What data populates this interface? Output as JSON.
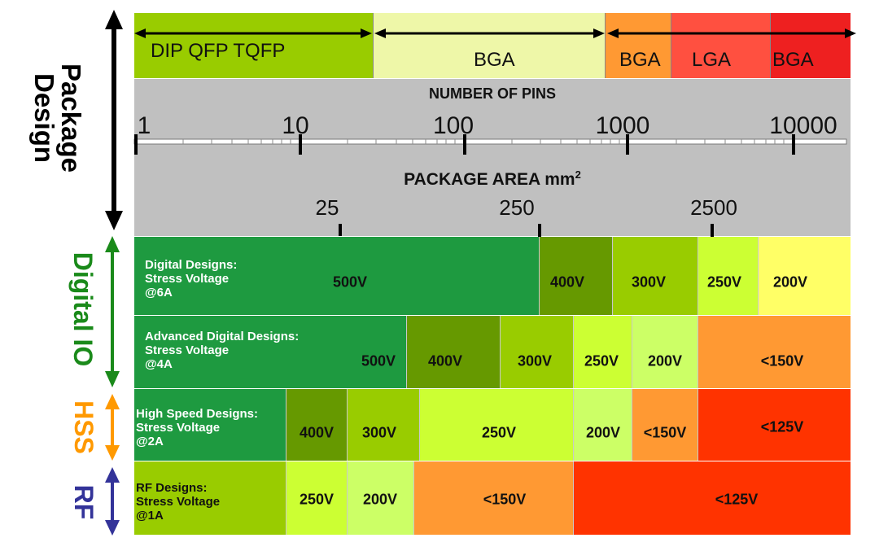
{
  "left_labels": {
    "package_design_line1": "Package",
    "package_design_line2": "Design",
    "digital_io": "Digital IO",
    "hss": "HSS",
    "rf": "RF"
  },
  "colors": {
    "pkg_green": "#99cc00",
    "pkg_yellow": "#eef7a8",
    "orange": "#ff9933",
    "red_light": "#ff5040",
    "red": "#ee2020",
    "gray": "#c0c0c0",
    "dark_green": "#1e9a40",
    "olive": "#669900",
    "lime": "#99cc00",
    "bright_lime": "#ccff33",
    "pale_yellow": "#ffff66",
    "light_green": "#ccff66",
    "red_orange": "#ff3300",
    "digital_io_text": "#1a8a1a",
    "hss_text": "#ff9900",
    "rf_text": "#333399"
  },
  "package_row": {
    "cells": [
      {
        "label": "DIP  QFP  TQFP"
      },
      {
        "label": "BGA"
      },
      {
        "label": "BGA"
      },
      {
        "label": "LGA"
      },
      {
        "label": "BGA"
      }
    ]
  },
  "pins_scale": {
    "title": "NUMBER OF PINS",
    "ticks": [
      "1",
      "10",
      "100",
      "1000",
      "10000"
    ]
  },
  "area_scale": {
    "title": "PACKAGE AREA mm",
    "superscript": "2",
    "ticks": [
      "25",
      "250",
      "2500"
    ]
  },
  "rows": [
    {
      "label_lines": [
        "Digital Designs:",
        "Stress Voltage",
        "@6A"
      ],
      "cells": [
        "500V",
        "400V",
        "300V",
        "250V",
        "200V"
      ]
    },
    {
      "label_lines": [
        "Advanced Digital Designs:",
        "Stress Voltage",
        "@4A"
      ],
      "cells": [
        "500V",
        "400V",
        "300V",
        "250V",
        "200V",
        "<150V"
      ]
    },
    {
      "label_lines": [
        "High Speed Designs:",
        "Stress Voltage",
        "@2A"
      ],
      "cells": [
        "400V",
        "300V",
        "250V",
        "200V",
        "<150V",
        "<125V"
      ]
    },
    {
      "label_lines": [
        "RF Designs:",
        "Stress Voltage",
        "@1A"
      ],
      "cells": [
        "250V",
        "200V",
        "<150V",
        "<125V"
      ]
    }
  ]
}
